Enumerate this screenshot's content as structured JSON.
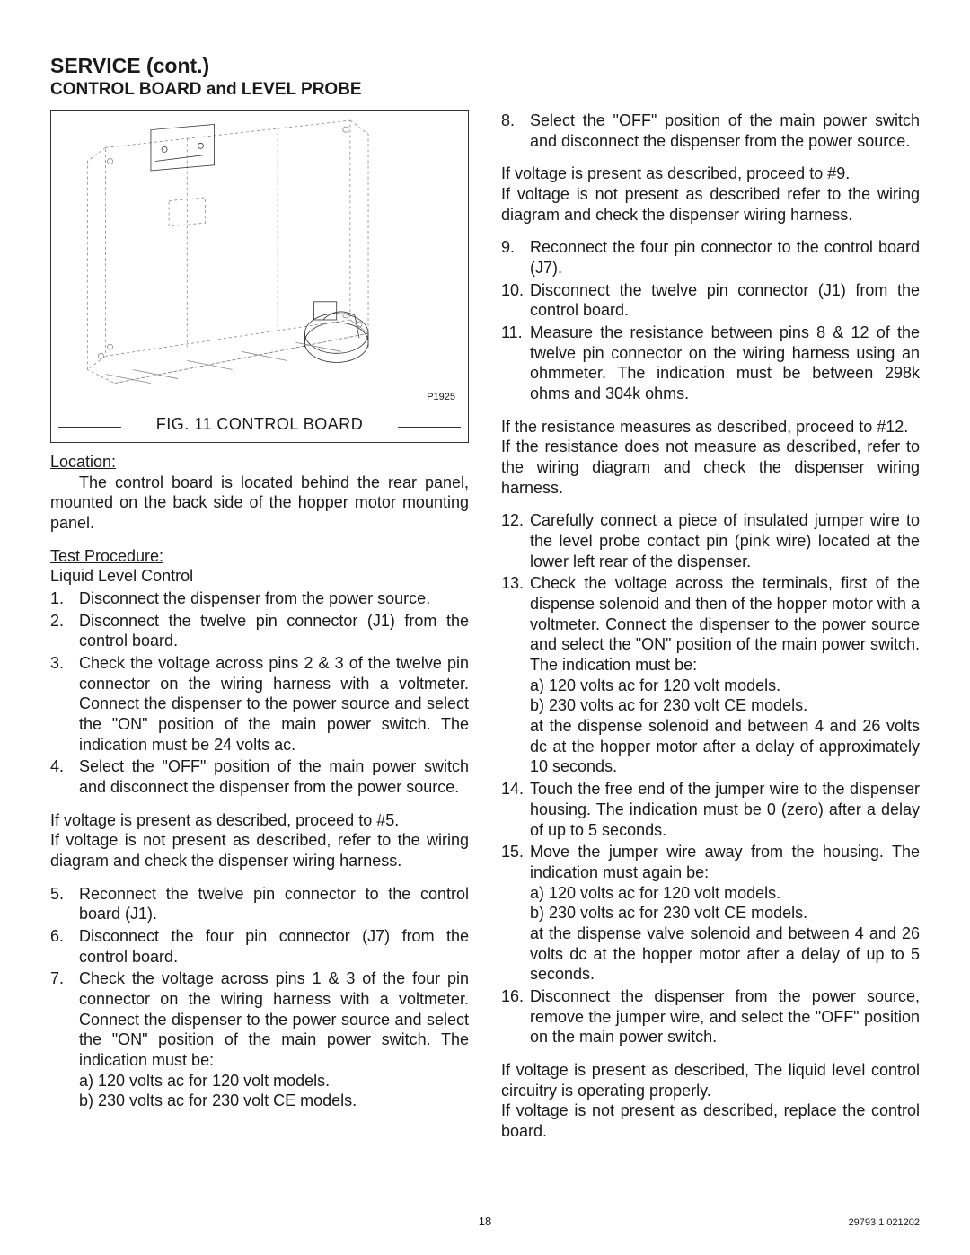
{
  "title": {
    "main": "SERVICE (cont.)",
    "sub": "CONTROL BOARD and LEVEL PROBE"
  },
  "figure": {
    "caption": "FIG. 11 CONTROL BOARD",
    "partno": "P1925",
    "stroke": "#6b6b6b",
    "stroke_heavy": "#333333"
  },
  "location": {
    "heading": "Location:",
    "body": "The control board is located behind the rear panel, mounted on the back side of the hopper motor mounting panel."
  },
  "test": {
    "heading": "Test Procedure:",
    "subheading": "Liquid Level Control"
  },
  "left_steps": [
    {
      "n": "1.",
      "t": "Disconnect the dispenser from the power source."
    },
    {
      "n": "2.",
      "t": "Disconnect the twelve pin connector (J1) from the control board."
    },
    {
      "n": "3.",
      "t": "Check the voltage across pins 2 & 3 of the twelve pin connector on the wiring harness with a voltmeter. Connect the dispenser to the power source and select the \"ON\" position of the main power switch. The indication must be 24 volts ac."
    },
    {
      "n": "4.",
      "t": "Select the \"OFF\" position of the main power switch and disconnect the dispenser from the power source."
    }
  ],
  "left_cond1": "If voltage is present as described, proceed to #5.\nIf voltage is not present as described, refer to the wiring diagram and check the dispenser wiring harness.",
  "left_steps2": [
    {
      "n": "5.",
      "t": "Reconnect the twelve pin connector to the control board (J1)."
    },
    {
      "n": "6.",
      "t": "Disconnect the four pin connector (J7) from the control board."
    },
    {
      "n": "7.",
      "t": "Check the voltage across pins 1 & 3 of the four pin connector on the wiring harness with a voltmeter. Connect the dispenser to the power source and select the \"ON\" position of the main power switch. The indication must be:",
      "sub": [
        "a) 120 volts ac for 120 volt models.",
        "b) 230 volts ac for 230 volt CE models."
      ]
    }
  ],
  "right_steps1": [
    {
      "n": "8.",
      "t": "Select the \"OFF\" position of the main power switch and disconnect the dispenser from the power source."
    }
  ],
  "right_cond1": "If voltage is present as described, proceed to #9.\nIf voltage is not present as described refer to the wiring diagram and check the dispenser wiring harness.",
  "right_steps2": [
    {
      "n": "9.",
      "t": "Reconnect the four pin connector to the control board (J7)."
    },
    {
      "n": "10.",
      "t": "Disconnect the twelve pin connector (J1) from the control board."
    },
    {
      "n": "11.",
      "t": "Measure the resistance between pins 8 & 12 of the twelve pin connector on the wiring harness using an ohmmeter. The indication must be between 298k ohms and 304k ohms."
    }
  ],
  "right_cond2": "If the resistance measures as described, proceed to #12.\nIf the resistance does not measure as described, refer to the wiring diagram and check the dispenser wiring harness.",
  "right_steps3": [
    {
      "n": "12.",
      "t": "Carefully connect a piece of insulated jumper wire to the level probe contact pin (pink wire) located at the lower left rear of the dispenser."
    },
    {
      "n": "13.",
      "t": "Check the voltage across the terminals, first of the dispense solenoid and then of the hopper motor with a voltmeter. Connect the dispenser to the power source and select the \"ON\" position of the main power switch. The indication must be:",
      "sub": [
        "a) 120 volts ac for 120 volt models.",
        "b) 230 volts ac for 230 volt CE models."
      ],
      "tail": "at the dispense solenoid and between 4 and 26 volts dc at the hopper motor after a delay of approximately 10 seconds."
    },
    {
      "n": "14.",
      "t": "Touch the free end of the jumper wire to the dispenser housing. The indication must be 0 (zero) after a delay of up to 5 seconds."
    },
    {
      "n": "15.",
      "t": "Move the jumper wire away from the housing. The indication must again be:",
      "sub": [
        "a) 120 volts ac for 120 volt models.",
        "b) 230 volts ac for 230 volt CE models."
      ],
      "tail": "at the dispense valve solenoid and between 4 and 26 volts dc at the hopper motor after a delay of up to 5 seconds."
    },
    {
      "n": "16.",
      "t": "Disconnect the dispenser from the power source, remove the jumper wire, and select the \"OFF\" position on the main power switch."
    }
  ],
  "right_cond3": "If voltage is present as described, The liquid level control circuitry is operating properly.\nIf voltage is not present as described, replace the control board.",
  "footer": {
    "page": "18",
    "doc": "29793.1 021202"
  }
}
